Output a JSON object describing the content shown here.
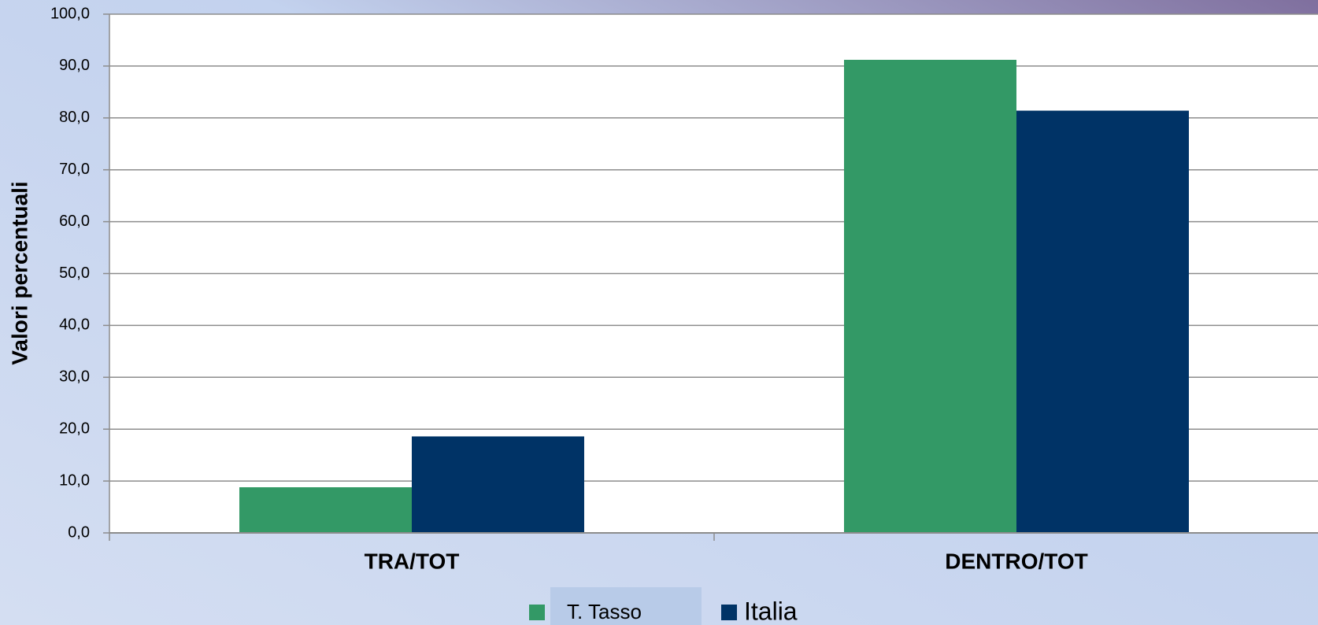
{
  "chart_data": {
    "type": "bar",
    "y_label": "Valori percentuali",
    "categories": [
      "TRA/TOT",
      "DENTRO/TOT"
    ],
    "series": [
      {
        "name": "T. Tasso",
        "color": "#339966",
        "values": [
          8.8,
          91.2
        ]
      },
      {
        "name": "Italia",
        "color": "#003366",
        "values": [
          18.6,
          81.4
        ]
      }
    ],
    "ylim": [
      0,
      100
    ],
    "yticks": [
      {
        "value": 0,
        "label": "0,0"
      },
      {
        "value": 10,
        "label": "10,0"
      },
      {
        "value": 20,
        "label": "20,0"
      },
      {
        "value": 30,
        "label": "30,0"
      },
      {
        "value": 40,
        "label": "40,0"
      },
      {
        "value": 50,
        "label": "50,0"
      },
      {
        "value": 60,
        "label": "60,0"
      },
      {
        "value": 70,
        "label": "70,0"
      },
      {
        "value": 80,
        "label": "80,0"
      },
      {
        "value": 90,
        "label": "90,0"
      },
      {
        "value": 100,
        "label": "100,0"
      }
    ],
    "grid": true
  }
}
